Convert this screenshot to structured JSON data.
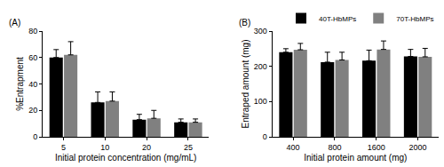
{
  "chart_data": [
    {
      "type": "bar",
      "title": "(A)",
      "x_label": "Initial protein concentration (mg/mL)",
      "y_label": "%Entrapment",
      "categories": [
        "5",
        "10",
        "20",
        "25"
      ],
      "series": [
        {
          "name": "40T-HbMPs",
          "color": "#000000",
          "values": [
            60,
            26,
            13,
            11
          ],
          "errors": [
            6,
            8,
            4,
            2.5
          ]
        },
        {
          "name": "70T-HbMPs",
          "color": "#808080",
          "values": [
            62,
            27,
            14,
            11
          ],
          "errors": [
            10,
            7,
            6,
            2.5
          ]
        }
      ],
      "ylim": [
        0,
        80
      ],
      "yticks": [
        0,
        20,
        40,
        60,
        80
      ],
      "grid": false
    },
    {
      "type": "bar",
      "title": "(B)",
      "x_label": "Initial protein amount (mg)",
      "y_label": "Entraped amount (mg)",
      "categories": [
        "400",
        "800",
        "1600",
        "2000"
      ],
      "series": [
        {
          "name": "40T-HbMPs",
          "color": "#000000",
          "values": [
            240,
            212,
            216,
            228
          ],
          "errors": [
            10,
            28,
            30,
            20
          ]
        },
        {
          "name": "70T-HbMPs",
          "color": "#808080",
          "values": [
            247,
            218,
            248,
            227
          ],
          "errors": [
            18,
            22,
            24,
            24
          ]
        }
      ],
      "ylim": [
        0,
        300
      ],
      "yticks": [
        0,
        100,
        200,
        300
      ],
      "grid": false,
      "legend": "top right"
    }
  ]
}
